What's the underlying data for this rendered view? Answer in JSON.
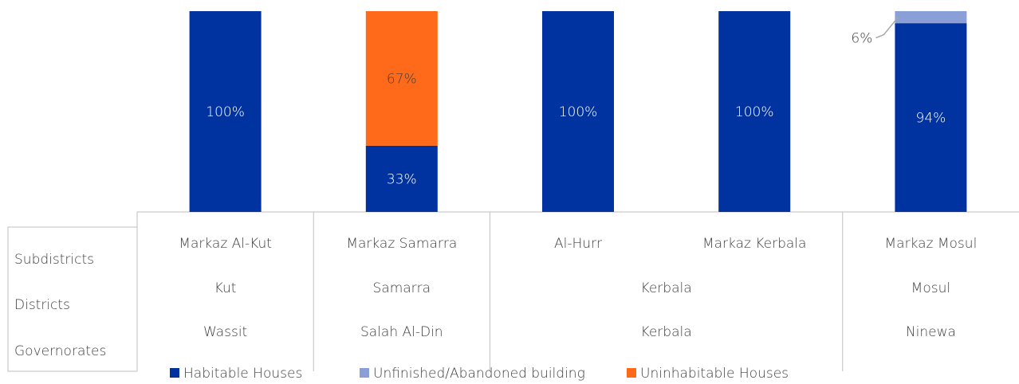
{
  "chart_data": {
    "type": "bar",
    "stacked": true,
    "categories": [
      "Markaz Al-Kut",
      "Markaz Samarra",
      "Al-Hurr",
      "Markaz Kerbala",
      "Markaz Mosul"
    ],
    "districts": [
      "Kut",
      "Samarra",
      "Kerbala",
      "Kerbala",
      "Mosul"
    ],
    "governorates": [
      "Wassit",
      "Salah Al-Din",
      "Kerbala",
      "Kerbala",
      "Ninewa"
    ],
    "level_labels": [
      "Subdistricts",
      "Districts",
      "Governorates"
    ],
    "ylim": [
      0,
      100
    ],
    "legend": "bottom",
    "series": [
      {
        "name": "Habitable Houses",
        "color": "#0033a0",
        "values": [
          100,
          33,
          100,
          100,
          94
        ],
        "value_labels": [
          "100%",
          "33%",
          "100%",
          "100%",
          "94%"
        ]
      },
      {
        "name": "Unfinished/Abandoned building",
        "color": "#8a9fd8",
        "values": [
          0,
          0,
          0,
          0,
          6
        ],
        "value_labels": [
          null,
          null,
          null,
          null,
          "6%"
        ]
      },
      {
        "name": "Uninhabitable Houses",
        "color": "#ff6a1a",
        "values": [
          0,
          67,
          0,
          0,
          0
        ],
        "value_labels": [
          null,
          "67%",
          null,
          null,
          null
        ]
      }
    ]
  }
}
